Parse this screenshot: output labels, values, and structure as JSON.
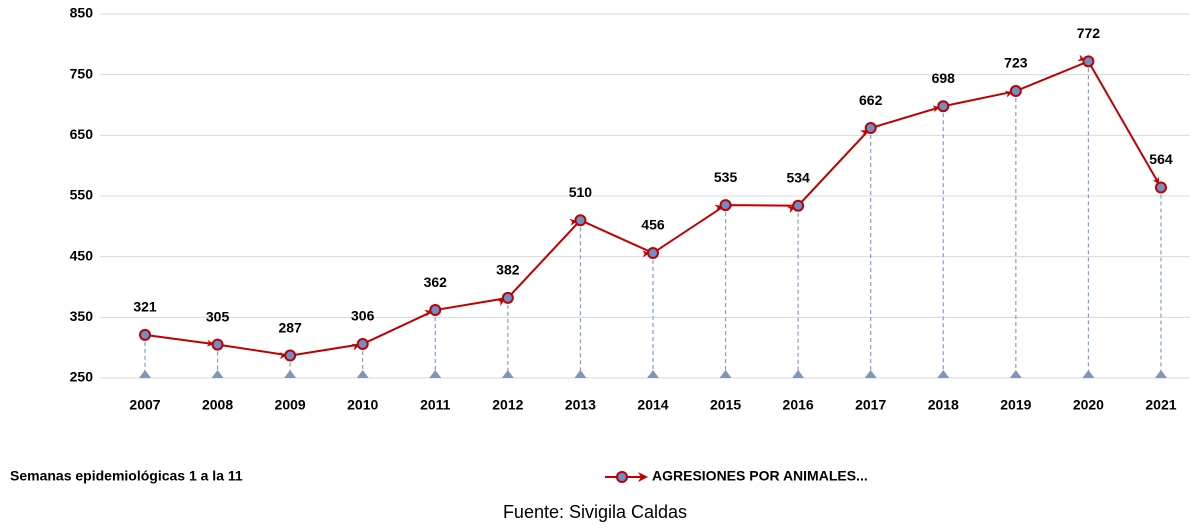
{
  "chart_data": {
    "type": "line",
    "categories": [
      "2007",
      "2008",
      "2009",
      "2010",
      "2011",
      "2012",
      "2013",
      "2014",
      "2015",
      "2016",
      "2017",
      "2018",
      "2019",
      "2020",
      "2021"
    ],
    "series": [
      {
        "name": "AGRESIONES POR ANIMALES...",
        "color": "#c00000",
        "marker_color": "#6b8fc9",
        "values": [
          321,
          305,
          287,
          306,
          362,
          382,
          510,
          456,
          535,
          534,
          662,
          698,
          723,
          772,
          564
        ]
      }
    ],
    "ylim": [
      250,
      850
    ],
    "yticks": [
      250,
      350,
      450,
      550,
      650,
      750,
      850
    ],
    "grid": true,
    "xlabel": "Semanas epidemiológicas 1 a la 11",
    "source": "Fuente: Sivigila Caldas"
  }
}
